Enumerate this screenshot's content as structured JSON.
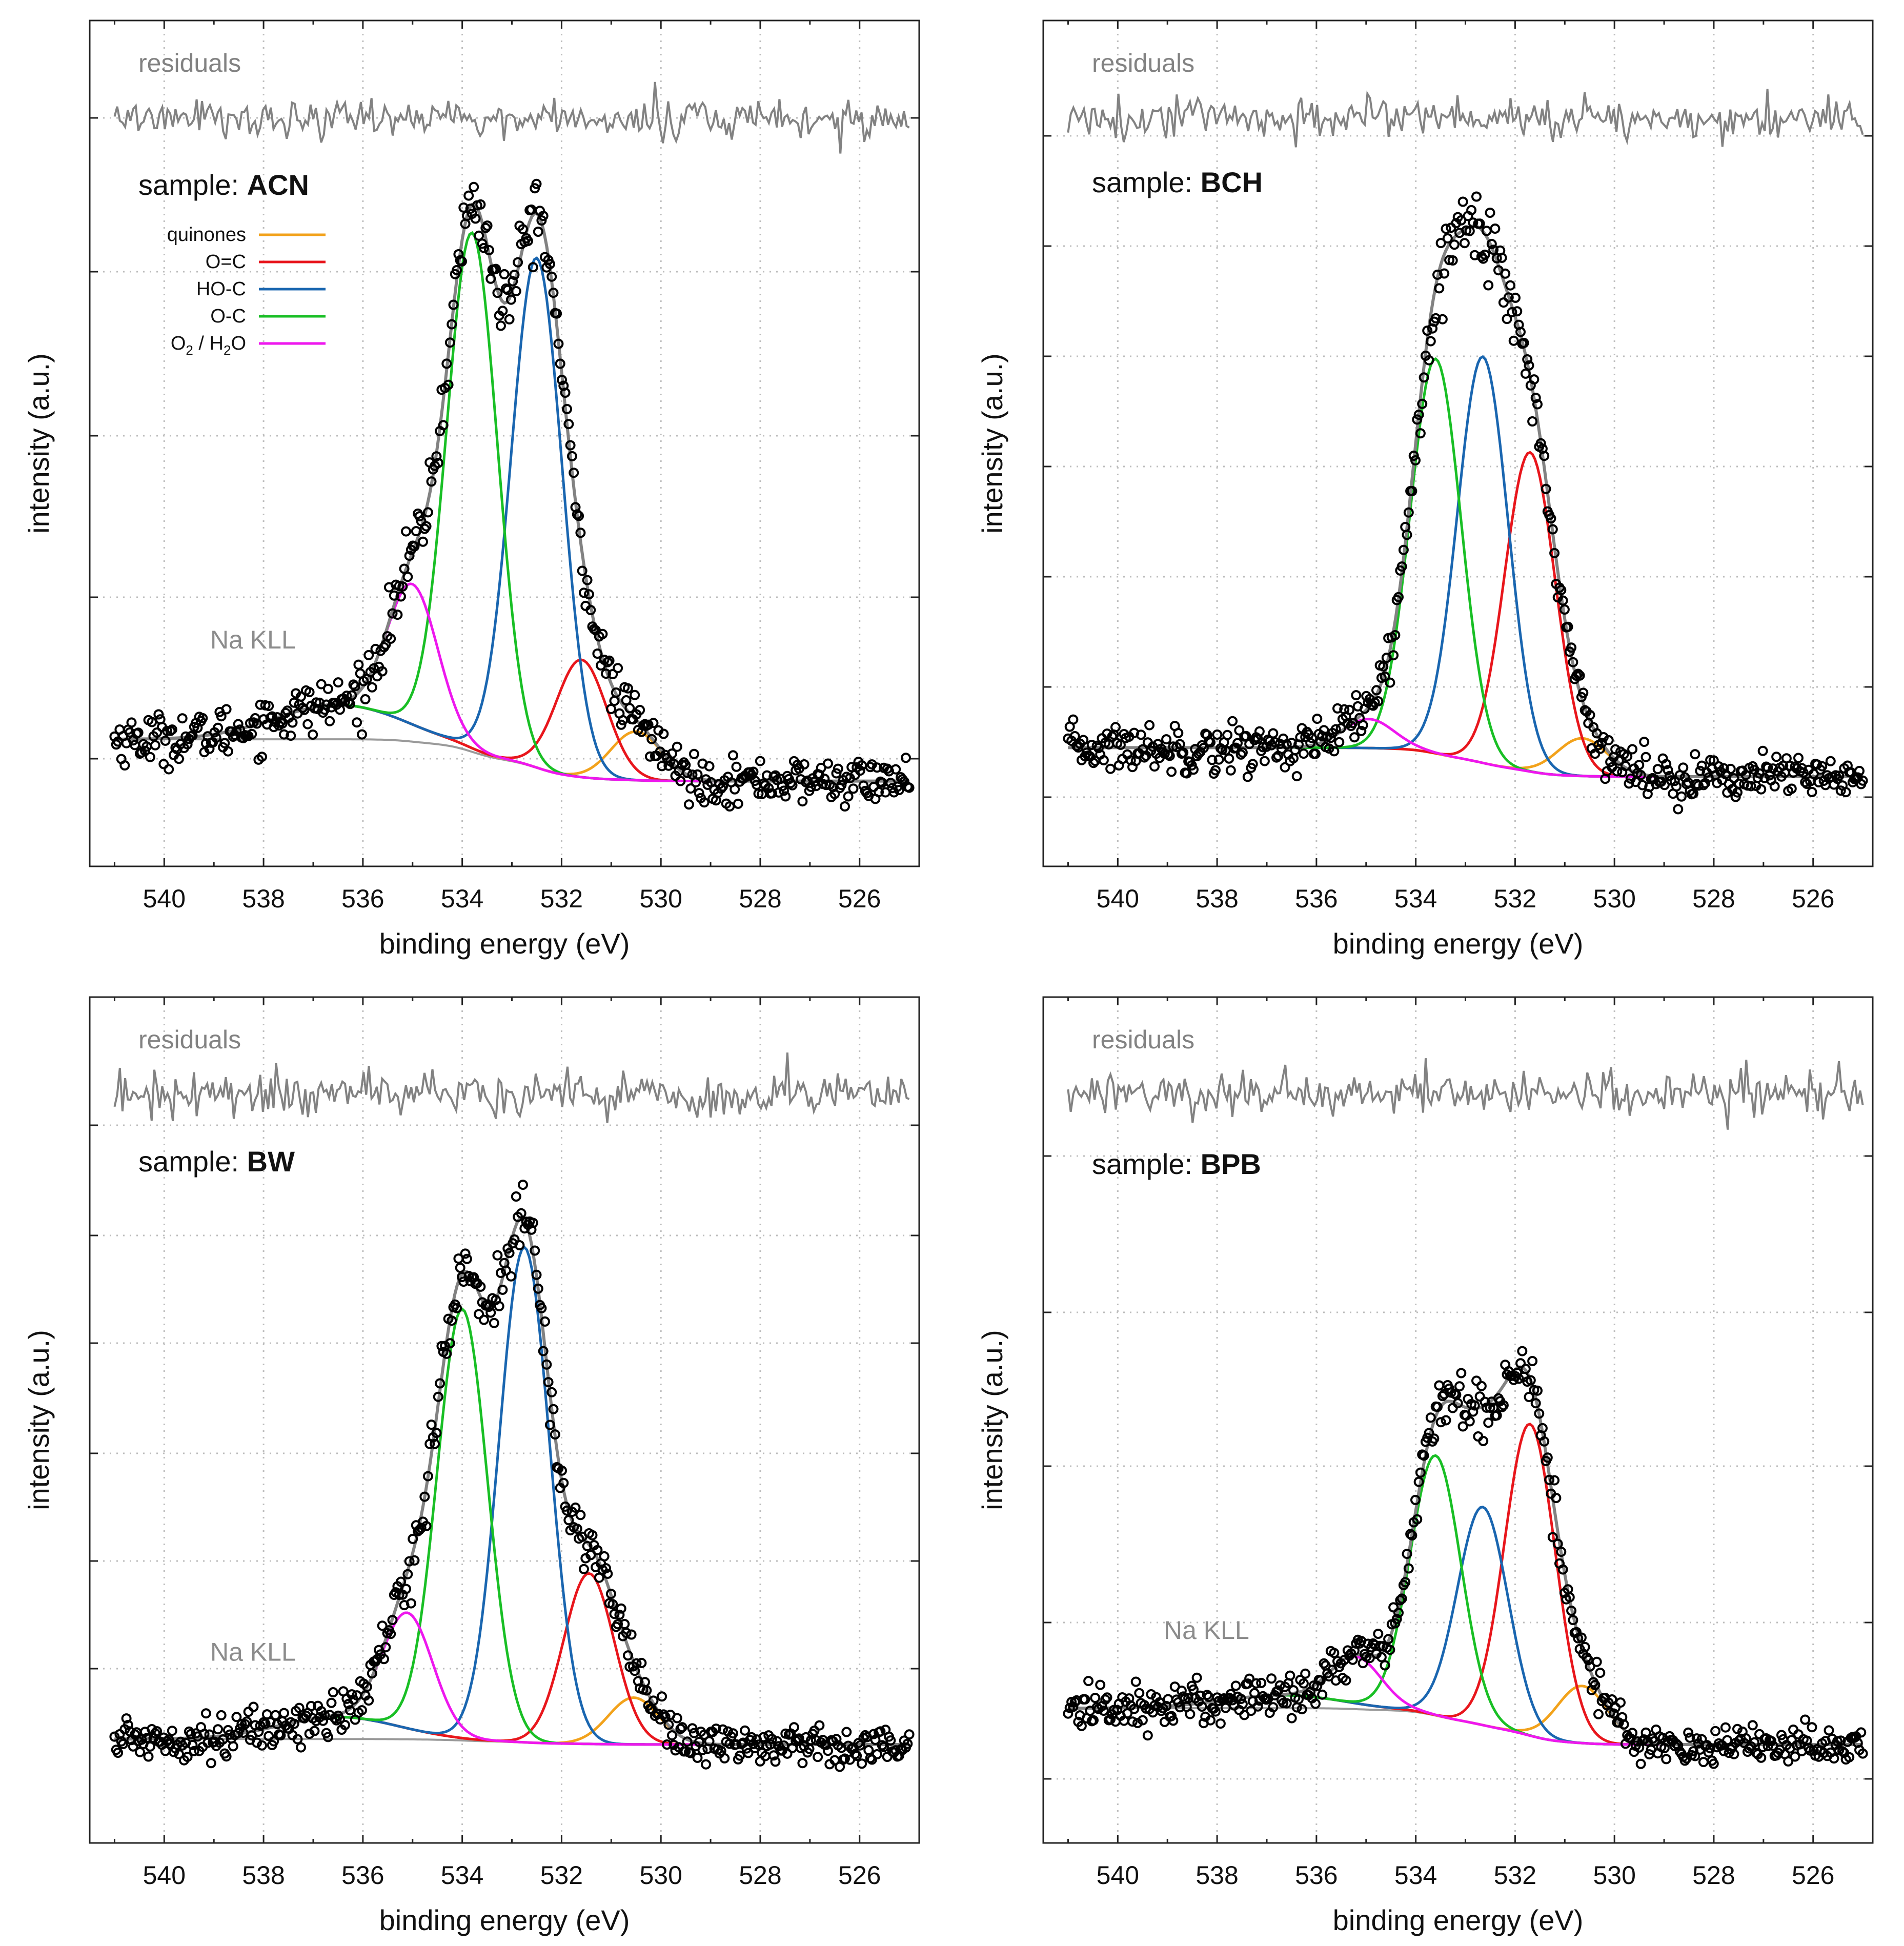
{
  "colors": {
    "quinones": "#f2a21b",
    "o_c_double": "#e8161c",
    "ho_c": "#1a66b0",
    "o_c_single": "#19bf25",
    "o2_h2o": "#ee17ee",
    "envelope": "#828282",
    "residuals": "#828282",
    "background": "#9a9a9a",
    "points": "#000000",
    "grid": "#bdbdbd",
    "annotation": "#8c8c8c"
  },
  "legend": {
    "placement": "upper-left of panel 1",
    "items": [
      {
        "key": "quinones",
        "label": "quinones"
      },
      {
        "key": "o_c_double",
        "label": "O=C"
      },
      {
        "key": "ho_c",
        "label": "HO-C"
      },
      {
        "key": "o_c_single",
        "label": "O-C"
      },
      {
        "key": "o2_h2o",
        "label": "O2 / H2O",
        "label_parts": [
          "O",
          "2",
          " / H",
          "2",
          "O"
        ]
      }
    ]
  },
  "chart_data": [
    {
      "type": "line",
      "sample_prefix": "sample: ",
      "sample": "ACN",
      "xlabel": "binding energy (eV)",
      "ylabel": "intensity (a.u.)",
      "xlim": [
        541.5,
        524.8
      ],
      "x_reversed": true,
      "grid": true,
      "xticks": [
        540,
        538,
        536,
        534,
        532,
        530,
        528,
        526
      ],
      "y_tick_labels": "none",
      "residuals_label": "residuals",
      "annotation": "Na KLL",
      "baseline": {
        "high_energy": 0.085,
        "low_energy": 0.012
      },
      "na_kll": {
        "center": 536.5,
        "amplitude": 0.06,
        "fwhm": 3.0
      },
      "peaks": [
        {
          "component": "quinones",
          "center": 530.5,
          "amplitude": 0.085,
          "fwhm": 1.2
        },
        {
          "component": "O=C",
          "center": 531.6,
          "amplitude": 0.205,
          "fwhm": 1.2
        },
        {
          "component": "HO-C",
          "center": 532.5,
          "amplitude": 0.89,
          "fwhm": 1.2
        },
        {
          "component": "O-C",
          "center": 533.8,
          "amplitude": 0.9,
          "fwhm": 1.2
        },
        {
          "component": "O2 / H2O",
          "center": 535.0,
          "amplitude": 0.245,
          "fwhm": 1.2
        }
      ]
    },
    {
      "type": "line",
      "sample_prefix": "sample: ",
      "sample": "BCH",
      "xlabel": "binding energy (eV)",
      "ylabel": "intensity (a.u.)",
      "xlim": [
        541.5,
        524.8
      ],
      "x_reversed": true,
      "grid": true,
      "xticks": [
        540,
        538,
        536,
        534,
        532,
        530,
        528,
        526
      ],
      "y_tick_labels": "none",
      "residuals_label": "residuals",
      "baseline": {
        "high_energy": 0.05,
        "low_energy": 0.0
      },
      "peaks": [
        {
          "component": "quinones",
          "center": 530.65,
          "amplitude": 0.065,
          "fwhm": 1.2
        },
        {
          "component": "O=C",
          "center": 531.7,
          "amplitude": 0.55,
          "fwhm": 1.2
        },
        {
          "component": "HO-C",
          "center": 532.65,
          "amplitude": 0.7,
          "fwhm": 1.2
        },
        {
          "component": "O-C",
          "center": 533.6,
          "amplitude": 0.68,
          "fwhm": 1.2
        },
        {
          "component": "O2 / H2O",
          "center": 534.95,
          "amplitude": 0.05,
          "fwhm": 1.2
        }
      ]
    },
    {
      "type": "line",
      "sample_prefix": "sample: ",
      "sample": "BW",
      "xlabel": "binding energy (eV)",
      "ylabel": "intensity (a.u.)",
      "xlim": [
        541.5,
        524.8
      ],
      "x_reversed": true,
      "grid": true,
      "xticks": [
        540,
        538,
        536,
        534,
        532,
        530,
        528,
        526
      ],
      "y_tick_labels": "none",
      "residuals_label": "residuals",
      "annotation": "Na KLL",
      "baseline": {
        "high_energy": 0.01,
        "low_energy": 0.0
      },
      "na_kll": {
        "center": 536.5,
        "amplitude": 0.04,
        "fwhm": 2.8
      },
      "peaks": [
        {
          "component": "quinones",
          "center": 530.55,
          "amplitude": 0.085,
          "fwhm": 1.2
        },
        {
          "component": "O=C",
          "center": 531.45,
          "amplitude": 0.31,
          "fwhm": 1.2
        },
        {
          "component": "HO-C",
          "center": 532.75,
          "amplitude": 0.9,
          "fwhm": 1.2
        },
        {
          "component": "O-C",
          "center": 534.0,
          "amplitude": 0.78,
          "fwhm": 1.2
        },
        {
          "component": "O2 / H2O",
          "center": 535.1,
          "amplitude": 0.21,
          "fwhm": 1.2
        }
      ]
    },
    {
      "type": "line",
      "sample_prefix": "sample: ",
      "sample": "BPB",
      "xlabel": "binding energy (eV)",
      "ylabel": "intensity (a.u.)",
      "xlim": [
        541.5,
        524.8
      ],
      "x_reversed": true,
      "grid": true,
      "xticks": [
        540,
        538,
        536,
        534,
        532,
        530,
        528,
        526
      ],
      "y_tick_labels": "none",
      "residuals_label": "residuals",
      "annotation": "Na KLL",
      "baseline": {
        "high_energy": 0.07,
        "low_energy": 0.0
      },
      "na_kll": {
        "center": 536.7,
        "amplitude": 0.025,
        "fwhm": 2.8
      },
      "peaks": [
        {
          "component": "quinones",
          "center": 530.65,
          "amplitude": 0.11,
          "fwhm": 1.2
        },
        {
          "component": "O=C",
          "center": 531.7,
          "amplitude": 0.6,
          "fwhm": 1.2
        },
        {
          "component": "HO-C",
          "center": 532.65,
          "amplitude": 0.42,
          "fwhm": 1.2
        },
        {
          "component": "O-C",
          "center": 533.6,
          "amplitude": 0.5,
          "fwhm": 1.2
        },
        {
          "component": "O2 / H2O",
          "center": 535.2,
          "amplitude": 0.09,
          "fwhm": 1.2
        }
      ]
    }
  ]
}
